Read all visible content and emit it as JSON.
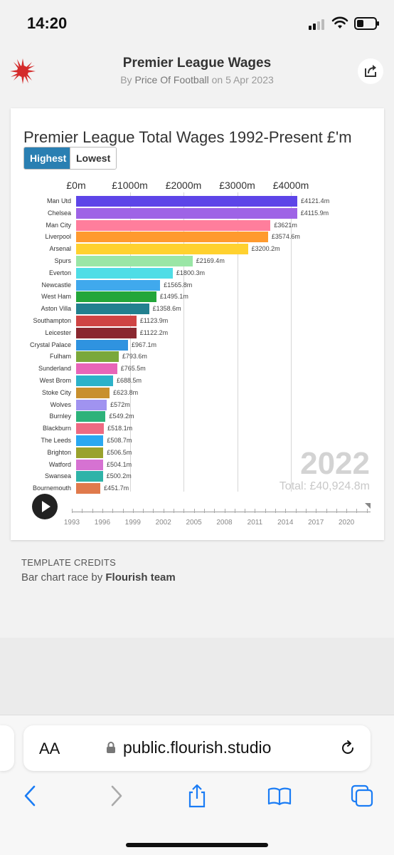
{
  "status": {
    "time": "14:20"
  },
  "header": {
    "title": "Premier League Wages",
    "byline_prefix": "By ",
    "author": "Price Of Football",
    "byline_mid": " on ",
    "date": "5 Apr 2023"
  },
  "chart": {
    "title": "Premier League Total Wages 1992-Present £'m",
    "toggle": {
      "highest": "Highest",
      "lowest": "Lowest"
    },
    "year": "2022",
    "total": "Total: £40,924.8m",
    "timeline_years": [
      "1993",
      "1996",
      "1999",
      "2002",
      "2005",
      "2008",
      "2011",
      "2014",
      "2017",
      "2020"
    ]
  },
  "chart_data": {
    "type": "bar",
    "orientation": "horizontal",
    "title": "Premier League Total Wages 1992-Present £'m",
    "x_ticks": [
      "£0m",
      "£1000m",
      "£2000m",
      "£3000m",
      "£4000m"
    ],
    "xlim": [
      0,
      4000
    ],
    "categories": [
      "Man Utd",
      "Chelsea",
      "Man City",
      "Liverpool",
      "Arsenal",
      "Spurs",
      "Everton",
      "Newcastle",
      "West Ham",
      "Aston Villa",
      "Southampton",
      "Leicester",
      "Crystal Palace",
      "Fulham",
      "Sunderland",
      "West Brom",
      "Stoke City",
      "Wolves",
      "Burnley",
      "Blackburn",
      "The Leeds",
      "Brighton",
      "Watford",
      "Swansea",
      "Bournemouth"
    ],
    "values": [
      4121.4,
      4115.9,
      3621,
      3574.6,
      3200.2,
      2169.4,
      1800.3,
      1565.8,
      1495.1,
      1358.6,
      1123.9,
      1122.2,
      967.1,
      793.6,
      765.5,
      688.5,
      623.8,
      572,
      549.2,
      518.1,
      508.7,
      506.5,
      504.1,
      500.2,
      451.7
    ],
    "value_labels": [
      "£4121.4m",
      "£4115.9m",
      "£3621m",
      "£3574.6m",
      "£3200.2m",
      "£2169.4m",
      "£1800.3m",
      "£1565.8m",
      "£1495.1m",
      "£1358.6m",
      "£1123.9m",
      "£1122.2m",
      "£967.1m",
      "£793.6m",
      "£765.5m",
      "£688.5m",
      "£623.8m",
      "£572m",
      "£549.2m",
      "£518.1m",
      "£508.7m",
      "£506.5m",
      "£504.1m",
      "£500.2m",
      "£451.7m"
    ],
    "colors": [
      "#5d45e8",
      "#9e63e6",
      "#ff7e9c",
      "#ff9a2e",
      "#ffd12f",
      "#9ae6a6",
      "#4fdde6",
      "#40a9ed",
      "#23a63a",
      "#22808f",
      "#cf4444",
      "#8a2830",
      "#2f93e0",
      "#7aa83b",
      "#e865b8",
      "#2cb2c9",
      "#c8902e",
      "#a093f0",
      "#2db27a",
      "#ee6a82",
      "#2aa8f0",
      "#9aa22c",
      "#d672d2",
      "#2fb3a8",
      "#e07a4c"
    ]
  },
  "credits": {
    "heading": "TEMPLATE CREDITS",
    "text_prefix": "Bar chart race by ",
    "author": "Flourish team"
  },
  "browser": {
    "aa_label": "AA",
    "url": "public.flourish.studio"
  }
}
